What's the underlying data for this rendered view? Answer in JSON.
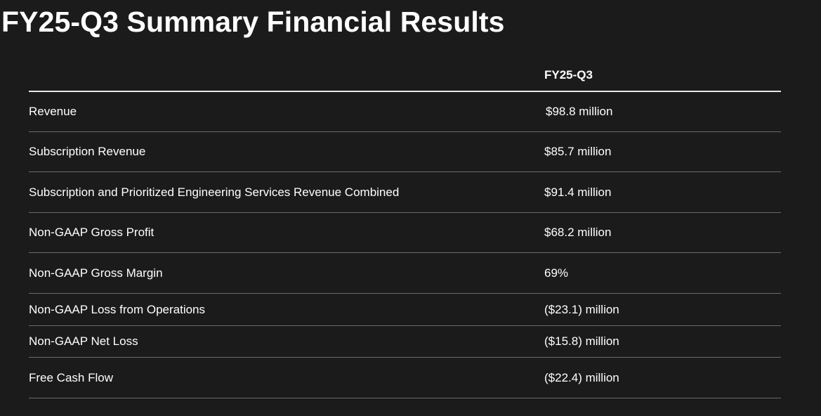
{
  "page": {
    "title": "FY25-Q3 Summary Financial Results"
  },
  "table": {
    "column_header": "FY25-Q3",
    "rows": [
      {
        "label": "Revenue",
        "value": "$98.8 million"
      },
      {
        "label": "Subscription Revenue",
        "value": "$85.7 million"
      },
      {
        "label": "Subscription and Prioritized Engineering Services Revenue Combined",
        "value": "$91.4 million"
      },
      {
        "label": "Non-GAAP Gross Profit",
        "value": "$68.2 million"
      },
      {
        "label": "Non-GAAP Gross Margin",
        "value": "69%"
      },
      {
        "label": "Non-GAAP Loss from Operations",
        "value": "($23.1) million"
      },
      {
        "label": "Non-GAAP Net Loss",
        "value": "($15.8) million"
      },
      {
        "label": "Free Cash Flow",
        "value": "($22.4) million"
      }
    ]
  },
  "colors": {
    "background": "#1c1b1b",
    "text": "#ffffff",
    "header_rule": "#e8e8e8",
    "row_rule": "#6a6a6a"
  }
}
